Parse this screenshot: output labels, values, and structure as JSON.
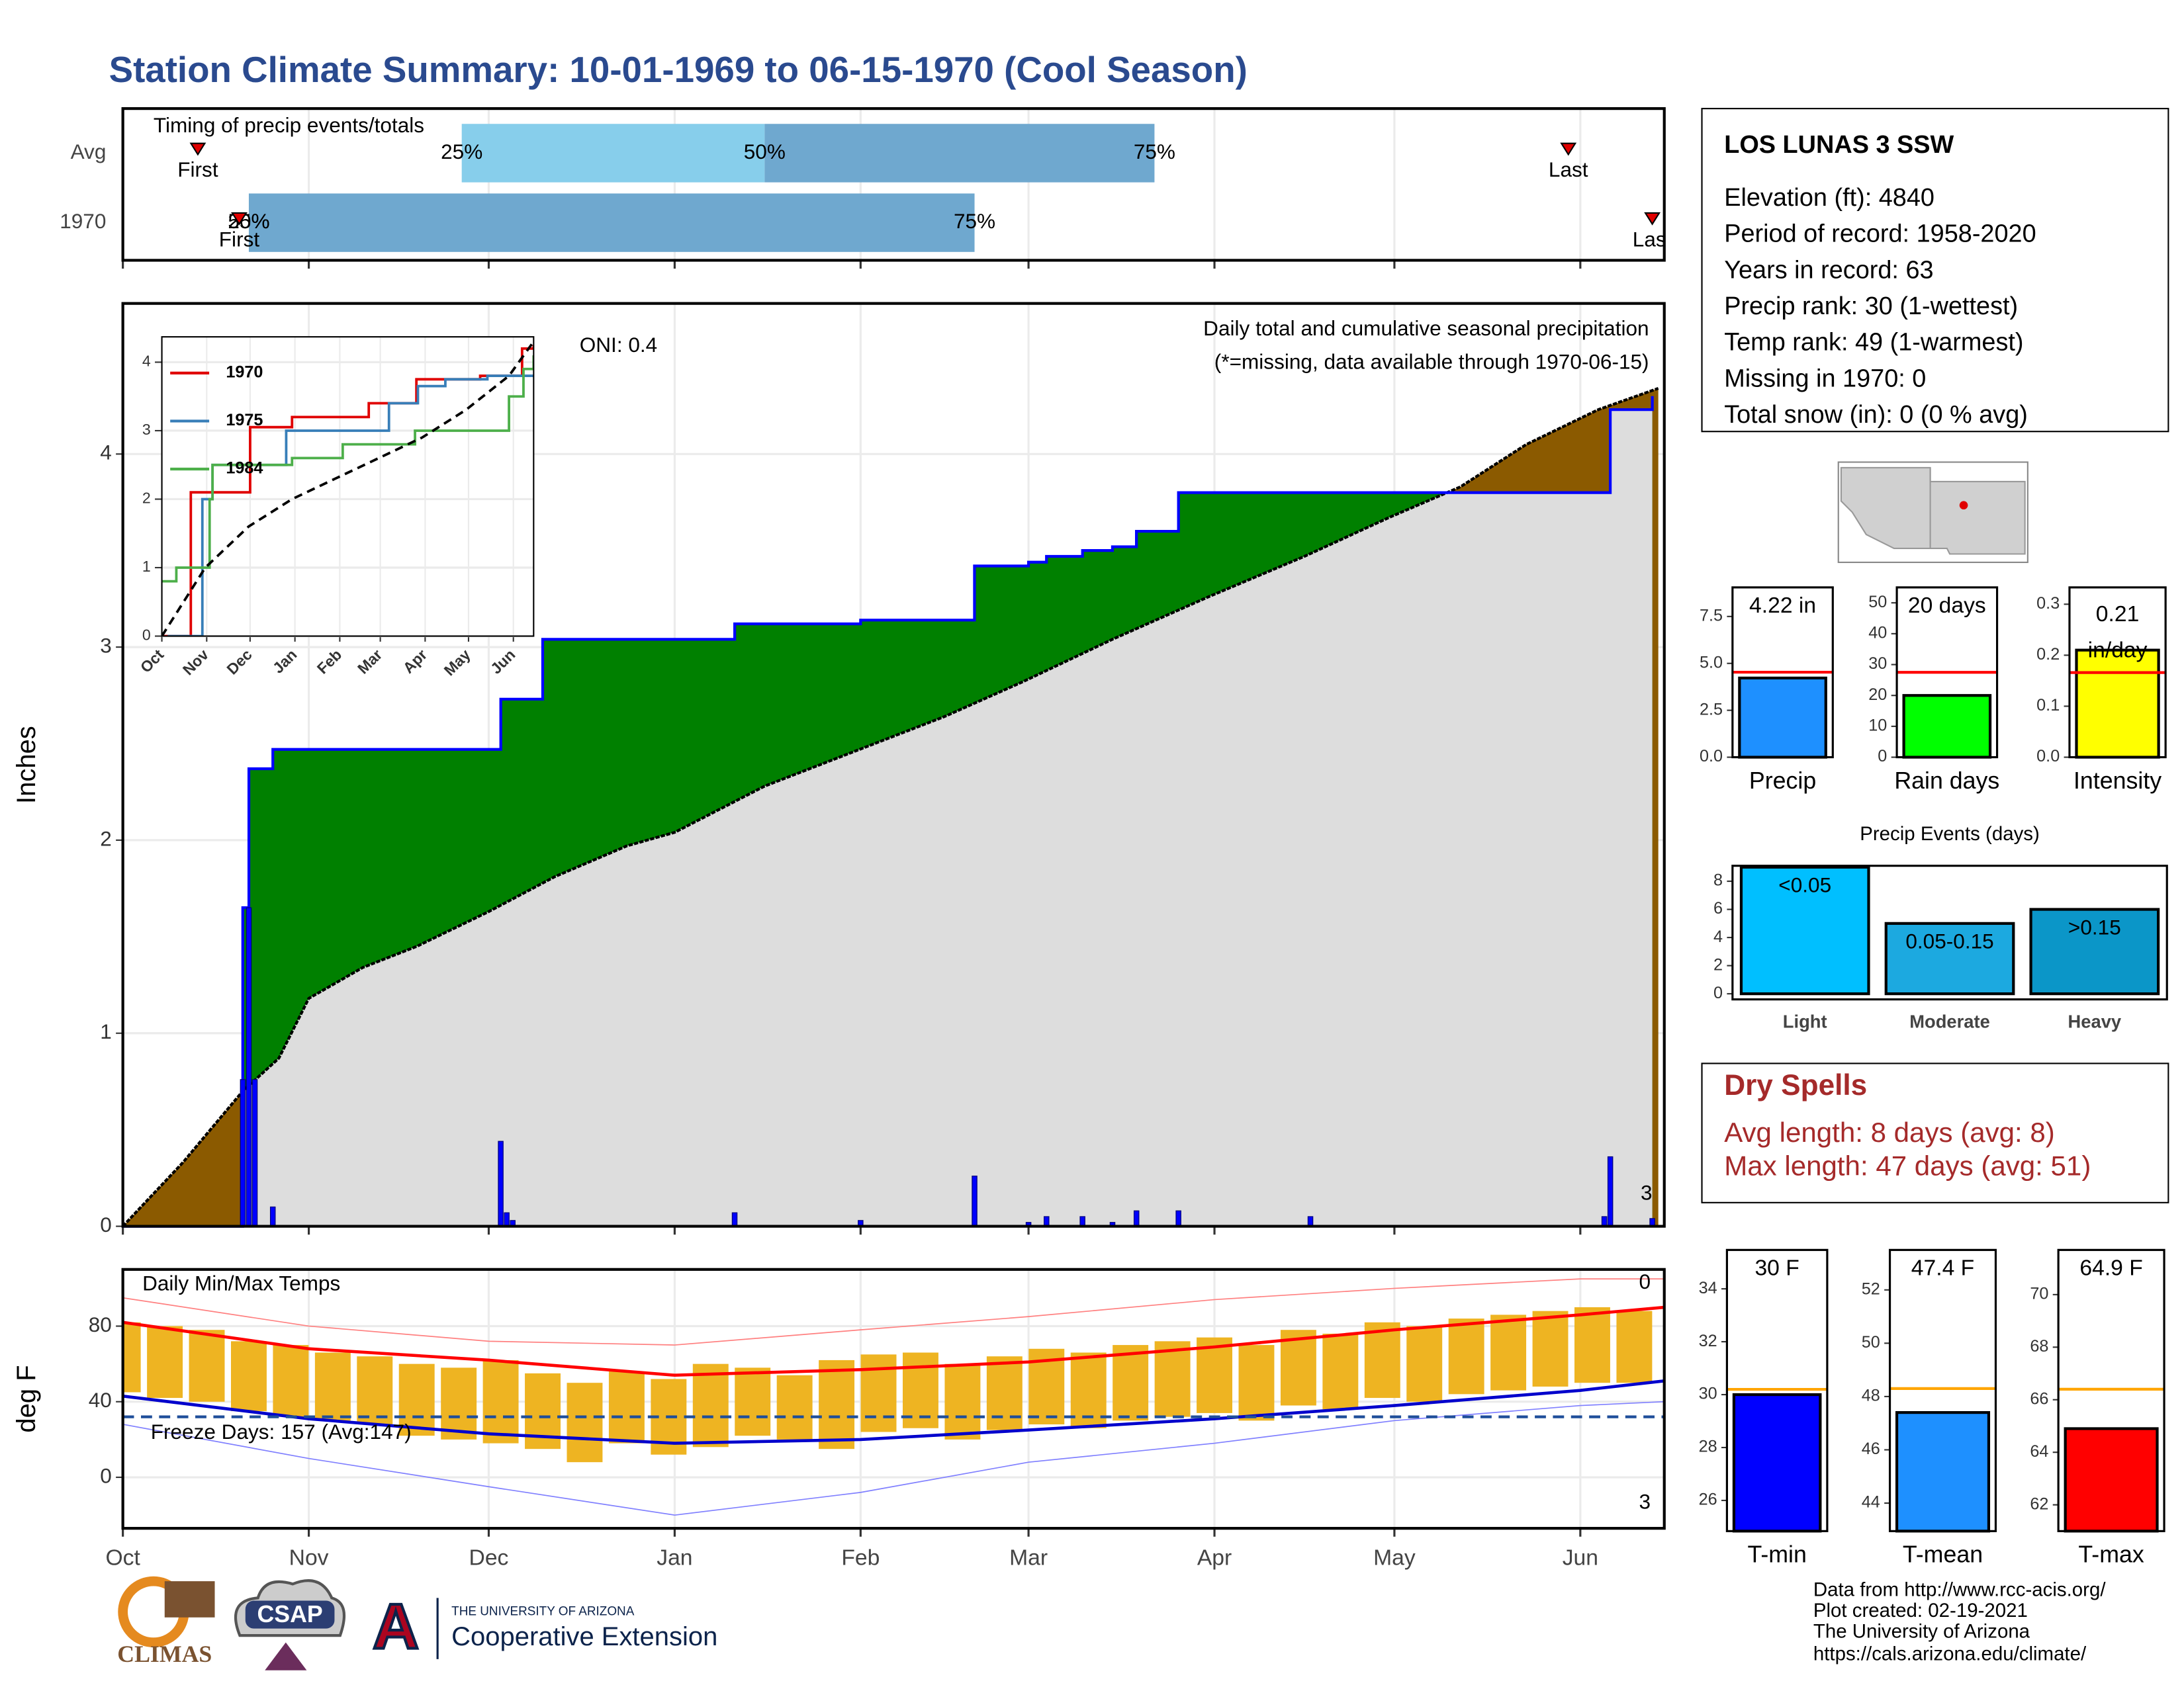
{
  "title": "Station Climate Summary: 10-01-1969 to 06-15-1970 (Cool Season)",
  "station": {
    "name": "LOS LUNAS 3 SSW",
    "lines": [
      "Elevation (ft): 4840",
      "Period of record: 1958-2020",
      "Years in record: 63",
      "Precip rank: 30 (1-wettest)",
      "Temp rank: 49 (1-warmest)",
      "Missing in 1970: 0",
      "Total snow (in): 0 (0 % avg)"
    ]
  },
  "dry_spells": {
    "title": "Dry Spells",
    "lines": [
      "Avg length: 8 days (avg: 8)",
      "Max length: 47 days (avg: 51)"
    ]
  },
  "footer": [
    "Data from http://www.rcc-acis.org/",
    "Plot created: 02-19-2021",
    "The University of Arizona",
    "https://cals.arizona.edu/climate/"
  ],
  "logos": {
    "climas": "CLIMAS",
    "csap": "CSAP",
    "arizona": "A",
    "university": "THE UNIVERSITY OF ARIZONA",
    "extension": "Cooperative Extension"
  },
  "chart_data": [
    {
      "type": "timing",
      "title": "Timing of precip events/totals",
      "categories": [
        "Avg",
        "1970"
      ],
      "first": [
        12.5,
        19.4
      ],
      "q25": [
        56.5,
        21
      ],
      "q50": [
        107,
        21
      ],
      "q75": [
        172,
        142
      ],
      "last": [
        241,
        255
      ],
      "first_label": "First",
      "last_label": "Last",
      "q25_label": "25%",
      "q50_label": "50%",
      "q75_label": "75%",
      "colors": [
        "#87ceeb",
        "#6fa8cf"
      ],
      "marker_color": "#e00000",
      "xlim": [
        0,
        257
      ],
      "xticks": [
        0,
        31,
        61,
        92,
        123,
        151,
        182,
        212,
        243
      ],
      "grid": true
    },
    {
      "type": "precip",
      "ylabel": "Inches",
      "annotation": "Daily total and cumulative seasonal precipitation",
      "note": "(*=missing, data available through 1970-06-15)",
      "oni": "ONI: 0.4",
      "corner_note": "3",
      "xlim": [
        0,
        257
      ],
      "ylim": [
        0,
        4.78
      ],
      "yticks": [
        0,
        1,
        2,
        3,
        4
      ],
      "xticks": [
        0,
        31,
        61,
        92,
        123,
        151,
        182,
        212,
        243
      ],
      "grid": true,
      "x_avg": [
        0,
        10,
        20,
        26,
        31,
        40,
        49,
        61,
        72,
        84,
        92,
        107,
        122,
        137,
        150,
        165,
        181,
        197,
        211,
        223,
        234,
        246,
        256
      ],
      "avg_cumulative": [
        0,
        0.33,
        0.7,
        0.87,
        1.18,
        1.34,
        1.45,
        1.63,
        1.81,
        1.97,
        2.04,
        2.28,
        2.46,
        2.64,
        2.82,
        3.04,
        3.26,
        3.47,
        3.67,
        3.83,
        4.05,
        4.23,
        4.34
      ],
      "x_1970": [
        0,
        20,
        21,
        25,
        63,
        70,
        102,
        123,
        142,
        151,
        154,
        160,
        165,
        169,
        176,
        248,
        255
      ],
      "cumulative_1970": [
        0,
        1.65,
        2.37,
        2.47,
        2.73,
        3.04,
        3.12,
        3.14,
        3.42,
        3.44,
        3.47,
        3.5,
        3.52,
        3.6,
        3.8,
        4.23,
        4.3
      ],
      "x_daily": [
        20,
        21,
        22,
        25,
        63,
        64,
        65,
        102,
        123,
        142,
        151,
        154,
        160,
        165,
        169,
        176,
        198,
        247,
        248,
        255
      ],
      "daily": [
        0.76,
        1.65,
        0.76,
        0.1,
        0.44,
        0.07,
        0.03,
        0.07,
        0.03,
        0.26,
        0.02,
        0.05,
        0.05,
        0.02,
        0.08,
        0.08,
        0.05,
        0.05,
        0.36,
        0.04
      ],
      "colors": {
        "above": "#008000",
        "below": "#8b5a00",
        "base": "#dddddd",
        "line": "#0000ff",
        "avg_line": "#000000",
        "bars": "#0000ff",
        "note": "#e00000",
        "corner": "#ffa500"
      }
    },
    {
      "type": "line",
      "xlim": [
        0,
        257
      ],
      "ylim": [
        0,
        4.37
      ],
      "yticks": [
        0,
        1,
        2,
        3,
        4
      ],
      "xticks": [
        {
          "value": 0,
          "label": "Oct"
        },
        {
          "value": 31,
          "label": "Nov"
        },
        {
          "value": 61,
          "label": "Dec"
        },
        {
          "value": 92,
          "label": "Jan"
        },
        {
          "value": 123,
          "label": "Feb"
        },
        {
          "value": 151,
          "label": "Mar"
        },
        {
          "value": 182,
          "label": "Apr"
        },
        {
          "value": 212,
          "label": "May"
        },
        {
          "value": 243,
          "label": "Jun"
        }
      ],
      "grid": true,
      "series": [
        {
          "name": "1970",
          "color": "#e00000",
          "drawstyle": "steps",
          "x": [
            0,
            19,
            20,
            61,
            90,
            143,
            176,
            220,
            249,
            257
          ],
          "values": [
            0,
            0,
            2.1,
            3.05,
            3.2,
            3.4,
            3.75,
            3.8,
            4.2,
            4.25
          ]
        },
        {
          "name": "1975",
          "color": "#377eb8",
          "drawstyle": "steps",
          "x": [
            4,
            28,
            35,
            86,
            157,
            177,
            196,
            225,
            257
          ],
          "values": [
            0,
            2.0,
            2.5,
            3.0,
            3.4,
            3.65,
            3.75,
            3.8,
            3.8
          ]
        },
        {
          "name": "1984",
          "color": "#4daf4a",
          "drawstyle": "steps",
          "x": [
            0,
            10,
            33,
            35,
            90,
            125,
            175,
            240,
            250,
            257
          ],
          "values": [
            0.8,
            1.0,
            2.0,
            2.5,
            2.6,
            2.8,
            3.0,
            3.5,
            3.9,
            4.1
          ]
        },
        {
          "color": "#000000",
          "dashed": true,
          "x": [
            0,
            30,
            60,
            90,
            120,
            150,
            180,
            210,
            240,
            257
          ],
          "values": [
            0,
            1.0,
            1.6,
            2.0,
            2.3,
            2.6,
            2.9,
            3.3,
            3.8,
            4.3
          ]
        }
      ]
    },
    {
      "type": "temps",
      "title": "Daily Min/Max Temps",
      "ylabel": "deg F",
      "freeze_label": "Freeze Days: 157 (Avg:147)",
      "top_note": "0",
      "bottom_note": "3",
      "xlim": [
        0,
        257
      ],
      "ylim": [
        -27,
        110
      ],
      "yticks": [
        0,
        40,
        80
      ],
      "xticks": [
        {
          "value": 0,
          "label": "Oct"
        },
        {
          "value": 31,
          "label": "Nov"
        },
        {
          "value": 61,
          "label": "Dec"
        },
        {
          "value": 92,
          "label": "Jan"
        },
        {
          "value": 123,
          "label": "Feb"
        },
        {
          "value": 151,
          "label": "Mar"
        },
        {
          "value": 182,
          "label": "Apr"
        },
        {
          "value": 212,
          "label": "May"
        },
        {
          "value": 243,
          "label": "Jun"
        }
      ],
      "grid": true,
      "x": [
        0,
        7,
        14,
        21,
        28,
        35,
        42,
        49,
        56,
        63,
        70,
        77,
        84,
        91,
        98,
        105,
        112,
        119,
        126,
        133,
        140,
        147,
        154,
        161,
        168,
        175,
        182,
        189,
        196,
        203,
        210,
        217,
        224,
        231,
        238,
        245,
        252
      ],
      "tmax": [
        82,
        80,
        78,
        72,
        70,
        66,
        64,
        60,
        58,
        62,
        55,
        50,
        56,
        52,
        60,
        58,
        54,
        62,
        65,
        66,
        60,
        64,
        68,
        66,
        70,
        72,
        74,
        70,
        78,
        76,
        82,
        80,
        84,
        86,
        88,
        90,
        88
      ],
      "tmin": [
        45,
        42,
        40,
        35,
        32,
        30,
        28,
        22,
        20,
        18,
        15,
        8,
        18,
        12,
        16,
        22,
        20,
        15,
        24,
        26,
        20,
        25,
        28,
        26,
        30,
        32,
        34,
        30,
        38,
        36,
        42,
        40,
        44,
        46,
        48,
        50,
        50
      ],
      "x_norm": [
        0,
        31,
        61,
        92,
        123,
        151,
        182,
        212,
        243,
        257
      ],
      "avg_max": [
        82,
        68,
        62,
        54,
        57,
        61,
        69,
        78,
        86,
        90
      ],
      "avg_min": [
        43,
        31,
        23,
        18,
        20,
        25,
        31,
        38,
        46,
        51
      ],
      "record_max": [
        95,
        80,
        72,
        70,
        78,
        85,
        94,
        100,
        105,
        105
      ],
      "record_min": [
        28,
        10,
        -5,
        -20,
        -8,
        8,
        18,
        30,
        38,
        40
      ],
      "freeze": 32,
      "colors": {
        "bars": "#eeb422",
        "avg_max": "#ff0000",
        "avg_min": "#0000cc",
        "record_max": "#ff8080",
        "record_min": "#8080ff",
        "freeze": "#1f4e9a"
      }
    },
    {
      "type": "mini_bar",
      "category": "Precip",
      "value": 4.22,
      "value_label": "4.22 in",
      "avg": 4.53,
      "color": "#1e90ff",
      "avg_color": "#ff0000",
      "ylim": [
        0,
        9.05
      ],
      "yticks": [
        {
          "value": 0,
          "label": "0.0"
        },
        2.5,
        {
          "value": 5,
          "label": "5.0"
        },
        7.5
      ]
    },
    {
      "type": "mini_bar",
      "category": "Rain days",
      "value": 20,
      "value_label": "20 days",
      "avg": 27.5,
      "color": "#00ff00",
      "avg_color": "#ff0000",
      "ylim": [
        0,
        55
      ],
      "yticks": [
        0,
        10,
        20,
        30,
        40,
        50
      ]
    },
    {
      "type": "mini_bar",
      "category": "Intensity",
      "value": 0.21,
      "value_label": "0.21 in/day",
      "wrap": true,
      "avg": 0.166,
      "color": "#ffff00",
      "avg_color": "#ff0000",
      "ylim": [
        0,
        0.333
      ],
      "yticks": [
        {
          "value": 0,
          "label": "0.0"
        },
        0.1,
        0.2,
        0.3
      ]
    },
    {
      "type": "bar",
      "title": "Precip Events (days)",
      "categories": [
        "Light",
        "Moderate",
        "Heavy"
      ],
      "values": [
        9,
        5,
        6
      ],
      "value_labels": [
        "<0.05",
        "0.05-0.15",
        ">0.15"
      ],
      "colors": [
        "#00bfff",
        "#1ca9e0",
        "#0b96c8"
      ],
      "ylim": [
        -0.4,
        9.1
      ],
      "yticks": [
        0,
        2,
        4,
        6,
        8
      ]
    },
    {
      "type": "mini_bar",
      "category": "T-min",
      "value": 30,
      "value_label": "30 F",
      "avg": 30.2,
      "color": "#0000ff",
      "avg_color": "#ffa500",
      "ylim": [
        24.84,
        35.47
      ],
      "yticks": [
        26,
        28,
        30,
        32,
        34
      ]
    },
    {
      "type": "mini_bar",
      "category": "T-mean",
      "value": 47.4,
      "value_label": "47.4 F",
      "avg": 48.3,
      "color": "#1e90ff",
      "avg_color": "#ffa500",
      "ylim": [
        42.95,
        53.5
      ],
      "yticks": [
        44,
        46,
        48,
        50,
        52
      ]
    },
    {
      "type": "mini_bar",
      "category": "T-max",
      "value": 64.9,
      "value_label": "64.9 F",
      "avg": 66.4,
      "color": "#ff0000",
      "avg_color": "#ffa500",
      "ylim": [
        61.0,
        71.7
      ],
      "yticks": [
        62,
        64,
        66,
        68,
        70
      ]
    }
  ]
}
